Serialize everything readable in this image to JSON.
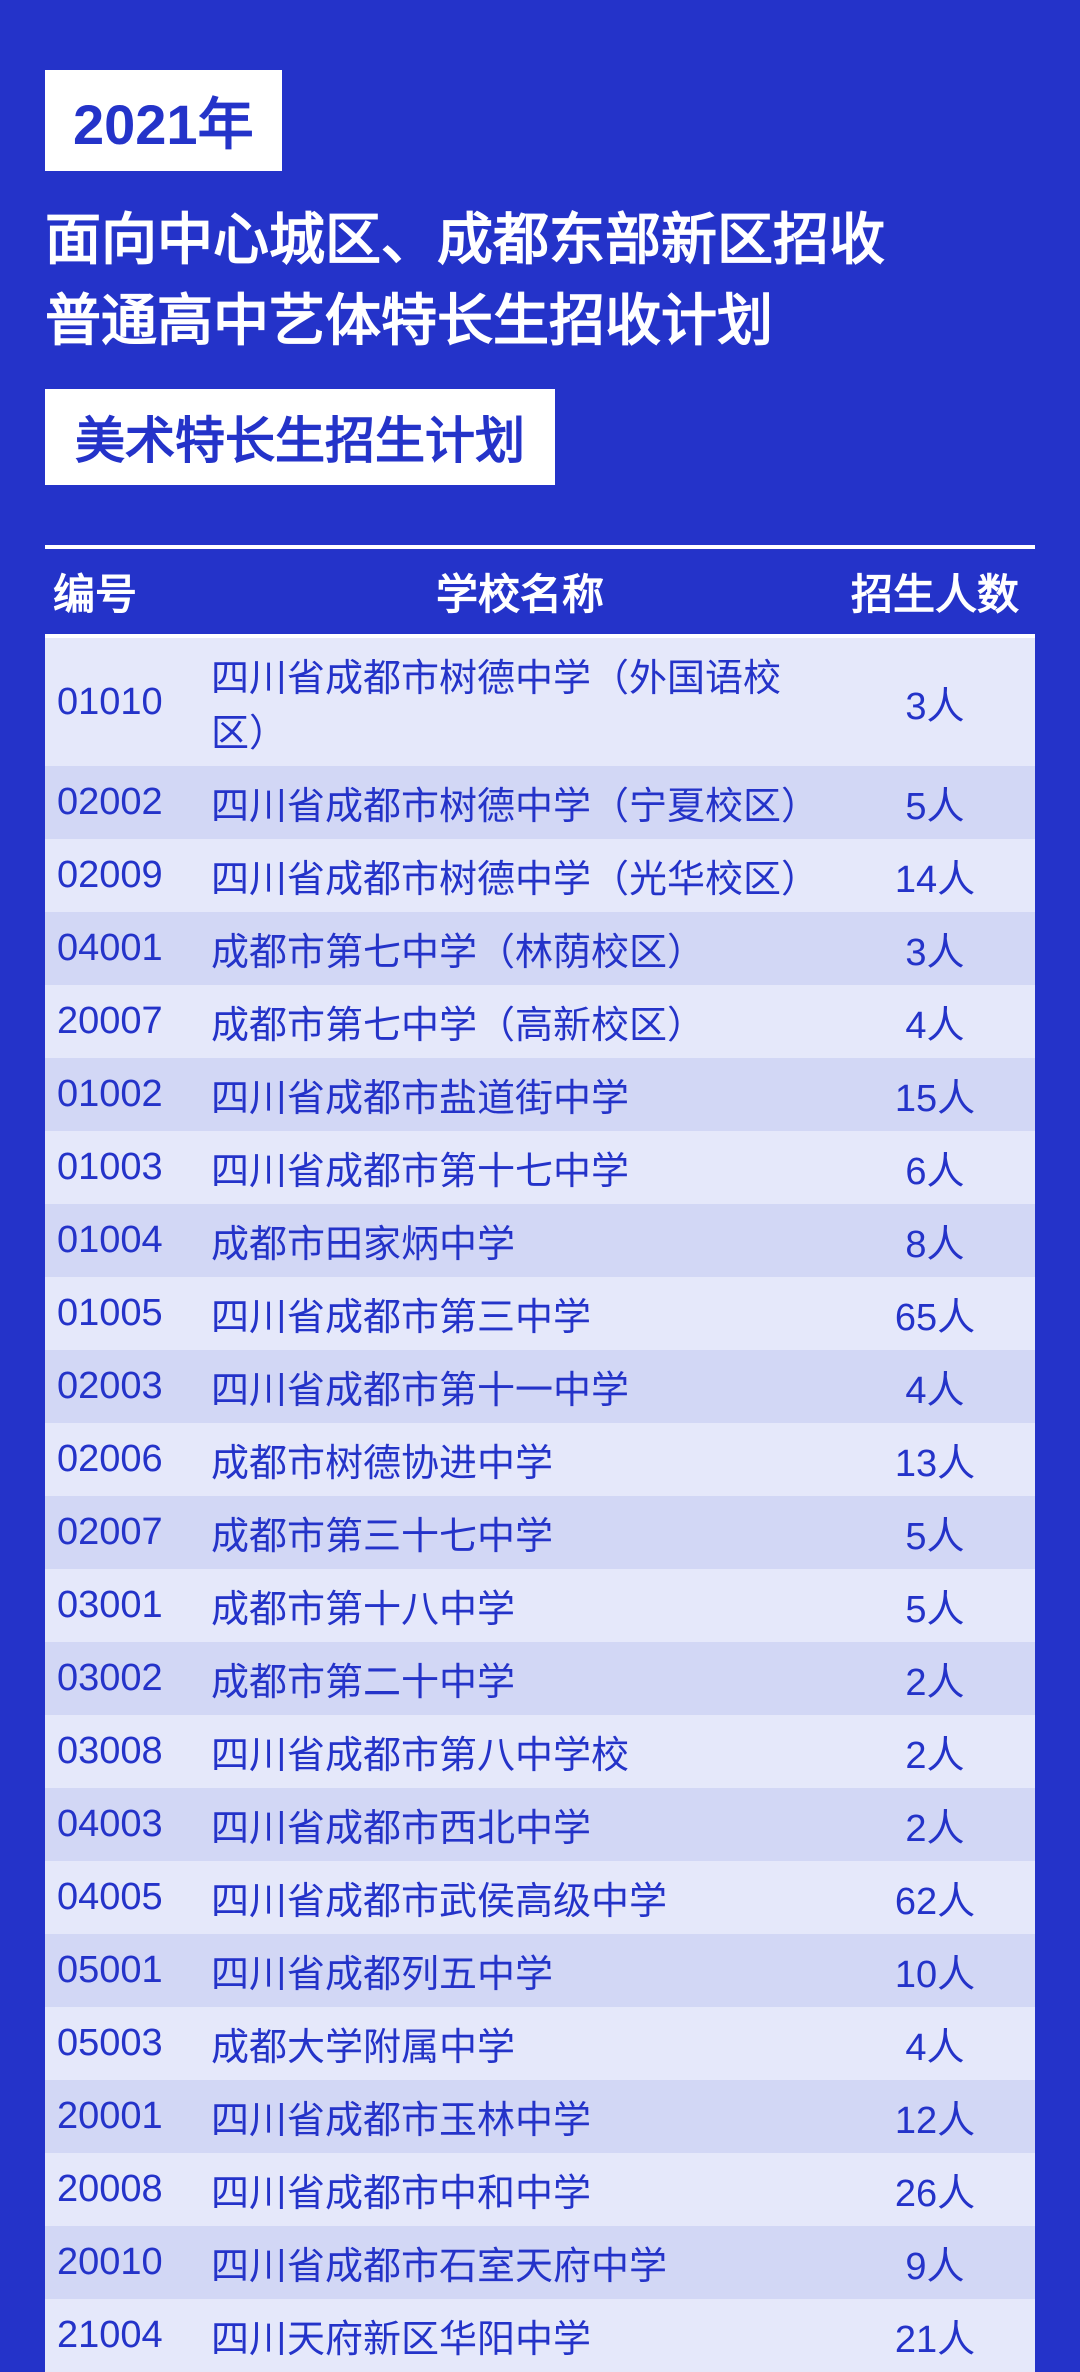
{
  "header": {
    "year_label": "2021年",
    "title_line1": "面向中心城区、成都东部新区招收",
    "title_line2": "普通高中艺体特长生招收计划",
    "sub_label": "美术特长生招生计划"
  },
  "table": {
    "columns": {
      "id": "编号",
      "name": "学校名称",
      "count": "招生人数"
    },
    "rows": [
      {
        "id": "01010",
        "name": "四川省成都市树德中学（外国语校区）",
        "count": "3人"
      },
      {
        "id": "02002",
        "name": "四川省成都市树德中学（宁夏校区）",
        "count": "5人"
      },
      {
        "id": "02009",
        "name": "四川省成都市树德中学（光华校区）",
        "count": "14人"
      },
      {
        "id": "04001",
        "name": "成都市第七中学（林荫校区）",
        "count": "3人"
      },
      {
        "id": "20007",
        "name": "成都市第七中学（高新校区）",
        "count": "4人"
      },
      {
        "id": "01002",
        "name": "四川省成都市盐道街中学",
        "count": "15人"
      },
      {
        "id": "01003",
        "name": "四川省成都市第十七中学",
        "count": "6人"
      },
      {
        "id": "01004",
        "name": "成都市田家炳中学",
        "count": "8人"
      },
      {
        "id": "01005",
        "name": "四川省成都市第三中学",
        "count": "65人"
      },
      {
        "id": "02003",
        "name": "四川省成都市第十一中学",
        "count": "4人"
      },
      {
        "id": "02006",
        "name": "成都市树德协进中学",
        "count": "13人"
      },
      {
        "id": "02007",
        "name": "成都市第三十七中学",
        "count": "5人"
      },
      {
        "id": "03001",
        "name": "成都市第十八中学",
        "count": "5人"
      },
      {
        "id": "03002",
        "name": "成都市第二十中学",
        "count": "2人"
      },
      {
        "id": "03008",
        "name": "四川省成都市第八中学校",
        "count": "2人"
      },
      {
        "id": "04003",
        "name": "四川省成都市西北中学",
        "count": "2人"
      },
      {
        "id": "04005",
        "name": "四川省成都市武侯高级中学",
        "count": "62人"
      },
      {
        "id": "05001",
        "name": "四川省成都列五中学",
        "count": "10人"
      },
      {
        "id": "05003",
        "name": "成都大学附属中学",
        "count": "4人"
      },
      {
        "id": "20001",
        "name": "四川省成都市玉林中学",
        "count": "12人"
      },
      {
        "id": "20008",
        "name": "四川省成都市中和中学",
        "count": "26人"
      },
      {
        "id": "20010",
        "name": "四川省成都市石室天府中学",
        "count": "9人"
      },
      {
        "id": "21004",
        "name": "四川天府新区华阳中学",
        "count": "21人"
      }
    ]
  },
  "colors": {
    "primary_blue": "#2433c9",
    "white": "#ffffff",
    "row_even": "#e5e8fa",
    "row_odd": "#d2d7f5"
  }
}
